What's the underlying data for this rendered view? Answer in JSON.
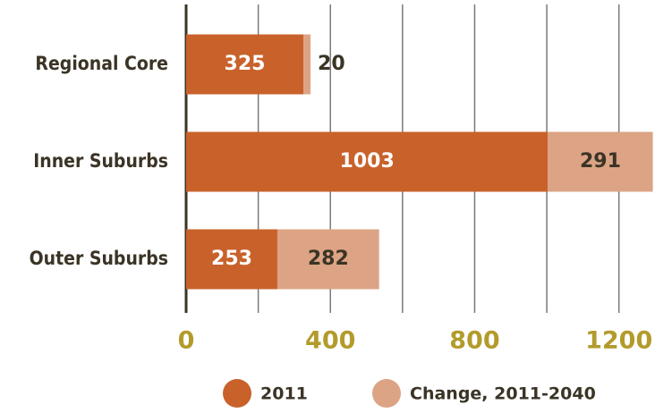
{
  "chart_data": {
    "type": "stacked_barh",
    "categories": [
      "Regional Core",
      "Inner Suburbs",
      "Outer Suburbs"
    ],
    "series": [
      {
        "name": "2011",
        "color": "#c8622a",
        "values": [
          325,
          1003,
          253
        ]
      },
      {
        "name": "Change, 2011-2040",
        "color": "#dca485",
        "values": [
          20,
          291,
          282
        ]
      }
    ],
    "xlim": [
      0,
      1300
    ],
    "xticks": [
      0,
      400,
      800,
      1200
    ],
    "xminor": [
      200,
      600,
      1000
    ],
    "grid": true,
    "legend": "bottom"
  }
}
